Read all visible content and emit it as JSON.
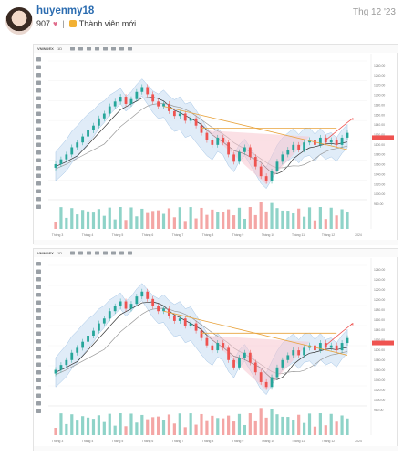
{
  "post": {
    "username": "huyenmy18",
    "reputation": "907",
    "heart": "♥",
    "separator": "|",
    "member_title": "Thành viên mới",
    "date": "Thg 12 '23"
  },
  "colors": {
    "up": "#26a69a",
    "down": "#ef5350",
    "band_fill": "#dbe9f7",
    "band_line": "#90b8e0",
    "trend_orange": "#e8a33d",
    "ma_dark": "#333333",
    "ma_grey": "#999999",
    "link": "#2b6cb0"
  },
  "charts": [
    {
      "symbol": "VNINDEX",
      "interval": "1D",
      "x_labels": [
        "Tháng 3",
        "Tháng 4",
        "Tháng 5",
        "Tháng 6",
        "Tháng 7",
        "Tháng 8",
        "Tháng 9",
        "Tháng 10",
        "Tháng 11",
        "Tháng 12",
        "2024"
      ],
      "y_labels": [
        "1260.00",
        "1240.00",
        "1220.00",
        "1200.00",
        "1180.00",
        "1160.00",
        "1140.00",
        "1120.00",
        "1100.00",
        "1080.00",
        "1060.00",
        "1040.00",
        "1020.00",
        "1000.00",
        "980.00"
      ]
    },
    {
      "symbol": "VNINDEX",
      "interval": "1D",
      "x_labels": [
        "Tháng 3",
        "Tháng 4",
        "Tháng 5",
        "Tháng 6",
        "Tháng 7",
        "Tháng 8",
        "Tháng 9",
        "Tháng 10",
        "Tháng 11",
        "Tháng 12",
        "2024"
      ],
      "y_labels": [
        "1260.00",
        "1240.00",
        "1220.00",
        "1200.00",
        "1180.00",
        "1160.00",
        "1140.00",
        "1120.00",
        "1100.00",
        "1080.00",
        "1060.00",
        "1040.00",
        "1020.00",
        "1000.00",
        "980.00"
      ]
    }
  ]
}
